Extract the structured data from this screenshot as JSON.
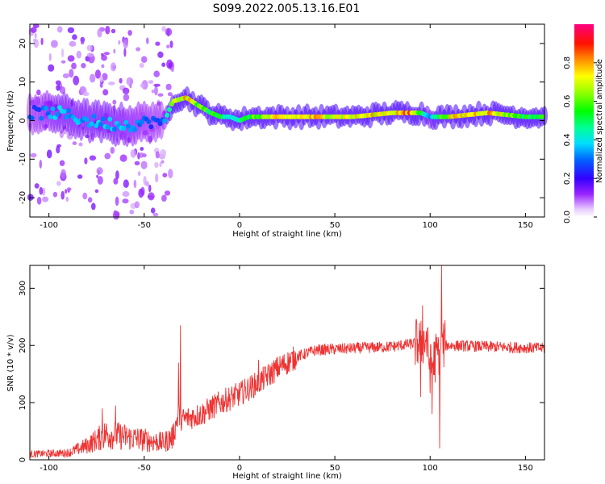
{
  "title": "S099.2022.005.13.16.E01",
  "chart_data": [
    {
      "type": "heatmap",
      "xlabel": "Height of straight line (km)",
      "ylabel": "Frequency (Hz)",
      "xlim": [
        -110,
        160
      ],
      "ylim": [
        -25,
        25
      ],
      "x_ticks": [
        -100,
        -50,
        0,
        50,
        100,
        150
      ],
      "y_ticks": [
        -20,
        -10,
        0,
        10,
        20
      ],
      "colorbar": {
        "label": "Normalized spectral amplitude",
        "range": [
          0,
          1
        ],
        "ticks": [
          0.0,
          0.2,
          0.4,
          0.6,
          0.8
        ]
      },
      "ridge": {
        "x": [
          -108,
          -95,
          -80,
          -65,
          -55,
          -45,
          -40,
          -35,
          -28,
          -22,
          -15,
          -10,
          -5,
          0,
          5,
          10,
          20,
          40,
          60,
          80,
          90,
          95,
          100,
          110,
          130,
          150,
          160
        ],
        "freq": [
          2,
          2,
          0,
          -1,
          -1,
          0,
          -1,
          5,
          6,
          4,
          2,
          1,
          1,
          0,
          1,
          1,
          1,
          1,
          1,
          2,
          2,
          2,
          1,
          1,
          2,
          1,
          1
        ],
        "amplitude": [
          0.3,
          0.4,
          0.4,
          0.4,
          0.35,
          0.3,
          0.3,
          0.7,
          0.85,
          0.7,
          0.6,
          0.6,
          0.5,
          0.5,
          0.6,
          0.7,
          0.8,
          0.85,
          0.8,
          0.85,
          0.9,
          0.6,
          0.4,
          0.8,
          0.9,
          0.6,
          0.6
        ]
      }
    },
    {
      "type": "line",
      "xlabel": "Height of straight line (km)",
      "ylabel": "SNR (10 * v/v)",
      "xlim": [
        -110,
        160
      ],
      "ylim": [
        0,
        340
      ],
      "x_ticks": [
        -100,
        -50,
        0,
        50,
        100,
        150
      ],
      "y_ticks": [
        0,
        100,
        200,
        300
      ],
      "color": "#ee3333",
      "trend": {
        "x": [
          -110,
          -90,
          -80,
          -70,
          -60,
          -50,
          -40,
          -35,
          -32,
          -30,
          -20,
          -10,
          0,
          10,
          20,
          30,
          40,
          60,
          80,
          95,
          98,
          100,
          103,
          105,
          107,
          110,
          130,
          160
        ],
        "y": [
          10,
          12,
          25,
          45,
          40,
          35,
          30,
          40,
          80,
          70,
          80,
          100,
          115,
          135,
          160,
          180,
          192,
          195,
          198,
          205,
          210,
          160,
          180,
          195,
          200,
          200,
          198,
          195
        ]
      },
      "spikes": [
        {
          "x": -31,
          "y": 235
        },
        {
          "x": -32,
          "y": 170
        },
        {
          "x": -72,
          "y": 90
        },
        {
          "x": -65,
          "y": 95
        },
        {
          "x": 10,
          "y": 175
        },
        {
          "x": 96,
          "y": 270
        },
        {
          "x": 106,
          "y": 340
        },
        {
          "x": 105,
          "y": 20
        },
        {
          "x": 95,
          "y": 110
        },
        {
          "x": 101,
          "y": 80
        }
      ]
    }
  ]
}
